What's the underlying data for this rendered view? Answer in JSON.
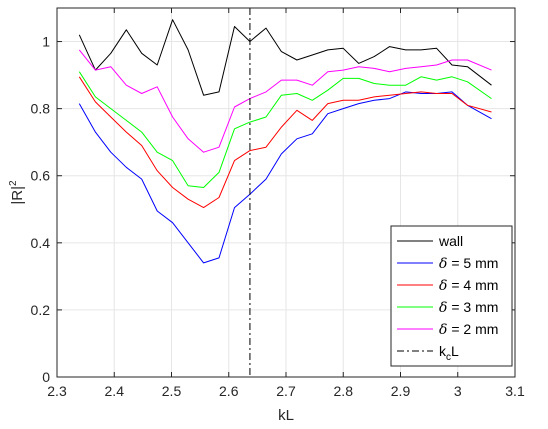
{
  "chart_data": {
    "type": "line",
    "xlabel": "kL",
    "ylabel_base": "|R|",
    "ylabel_sup": "2",
    "xlim": [
      2.3,
      3.1
    ],
    "ylim": [
      0,
      1.1
    ],
    "xticks": [
      2.3,
      2.4,
      2.5,
      2.6,
      2.7,
      2.8,
      2.9,
      3.0,
      3.1
    ],
    "xtick_labels": [
      "2.3",
      "2.4",
      "2.5",
      "2.6",
      "2.7",
      "2.8",
      "2.9",
      "3",
      "3.1"
    ],
    "yticks": [
      0,
      0.2,
      0.4,
      0.6,
      0.8,
      1.0
    ],
    "ytick_labels": [
      "0",
      "0.2",
      "0.4",
      "0.6",
      "0.8",
      "1"
    ],
    "grid": true,
    "legend_position": "bottom-right",
    "x": [
      2.339,
      2.367,
      2.394,
      2.421,
      2.448,
      2.475,
      2.502,
      2.529,
      2.556,
      2.583,
      2.61,
      2.637,
      2.665,
      2.692,
      2.719,
      2.746,
      2.773,
      2.8,
      2.827,
      2.854,
      2.881,
      2.909,
      2.936,
      2.963,
      2.99,
      3.017,
      3.059
    ],
    "series": [
      {
        "name": "wall",
        "color": "#000000",
        "dash": "solid",
        "values": [
          1.02,
          0.915,
          0.965,
          1.035,
          0.965,
          0.93,
          1.065,
          0.975,
          0.84,
          0.85,
          1.045,
          1.0,
          1.04,
          0.97,
          0.945,
          0.96,
          0.975,
          0.98,
          0.935,
          0.955,
          0.985,
          0.975,
          0.975,
          0.98,
          0.93,
          0.925,
          0.87
        ]
      },
      {
        "name": "δ = 5 mm",
        "color": "#0000ff",
        "dash": "solid",
        "values": [
          0.815,
          0.73,
          0.67,
          0.625,
          0.59,
          0.495,
          0.46,
          0.4,
          0.34,
          0.355,
          0.505,
          0.545,
          0.59,
          0.665,
          0.71,
          0.725,
          0.785,
          0.8,
          0.815,
          0.825,
          0.83,
          0.85,
          0.845,
          0.845,
          0.85,
          0.81,
          0.77
        ]
      },
      {
        "name": "δ = 4 mm",
        "color": "#ff0000",
        "dash": "solid",
        "values": [
          0.895,
          0.82,
          0.775,
          0.73,
          0.69,
          0.615,
          0.565,
          0.53,
          0.505,
          0.535,
          0.645,
          0.675,
          0.685,
          0.745,
          0.795,
          0.765,
          0.815,
          0.825,
          0.825,
          0.835,
          0.84,
          0.845,
          0.85,
          0.845,
          0.845,
          0.81,
          0.79
        ]
      },
      {
        "name": "δ = 3 mm",
        "color": "#00ff00",
        "dash": "solid",
        "values": [
          0.91,
          0.835,
          0.8,
          0.765,
          0.73,
          0.67,
          0.645,
          0.57,
          0.565,
          0.61,
          0.74,
          0.76,
          0.775,
          0.84,
          0.845,
          0.825,
          0.855,
          0.89,
          0.89,
          0.875,
          0.87,
          0.87,
          0.895,
          0.885,
          0.895,
          0.88,
          0.83
        ]
      },
      {
        "name": "δ = 2 mm",
        "color": "#ff00ff",
        "dash": "solid",
        "values": [
          0.975,
          0.915,
          0.925,
          0.87,
          0.845,
          0.865,
          0.775,
          0.71,
          0.67,
          0.685,
          0.805,
          0.83,
          0.85,
          0.885,
          0.885,
          0.87,
          0.91,
          0.915,
          0.925,
          0.92,
          0.91,
          0.92,
          0.925,
          0.93,
          0.945,
          0.945,
          0.915
        ]
      }
    ],
    "vline": {
      "name": "k_c L",
      "x": 2.637,
      "color": "#000000",
      "dash": "dashdot"
    },
    "legend": [
      {
        "label": "wall",
        "color": "#000000",
        "dash": "solid",
        "italic_prefix": ""
      },
      {
        "label": " = 5 mm",
        "color": "#0000ff",
        "dash": "solid",
        "italic_prefix": "δ"
      },
      {
        "label": " = 4 mm",
        "color": "#ff0000",
        "dash": "solid",
        "italic_prefix": "δ"
      },
      {
        "label": " = 3 mm",
        "color": "#00ff00",
        "dash": "solid",
        "italic_prefix": "δ"
      },
      {
        "label": " = 2 mm",
        "color": "#ff00ff",
        "dash": "solid",
        "italic_prefix": "δ"
      },
      {
        "label_base": "k",
        "label_sub": "c",
        "label_rest": "L",
        "color": "#000000",
        "dash": "dashdot"
      }
    ]
  }
}
